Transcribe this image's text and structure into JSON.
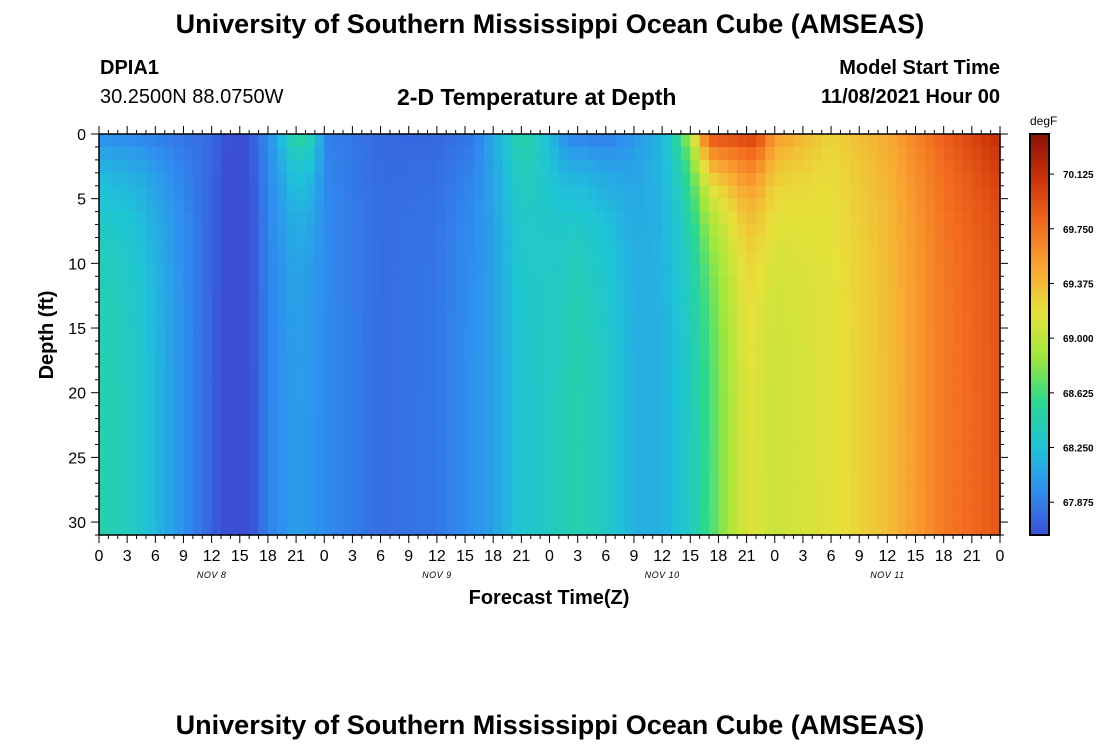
{
  "header": {
    "title": "University of Southern Mississippi Ocean Cube (AMSEAS)",
    "station": "DPIA1",
    "coords": "30.2500N  88.0750W",
    "subtitle": "2-D Temperature at Depth",
    "model_label": "Model Start Time",
    "model_time": "11/08/2021 Hour 00"
  },
  "footer": {
    "title": "University of Southern Mississippi Ocean Cube (AMSEAS)"
  },
  "chart_data": {
    "type": "heatmap",
    "title": "2-D Temperature at Depth",
    "xlabel": "Forecast Time(Z)",
    "ylabel": "Depth (ft)",
    "x_unit": "hours since 11/08/2021 00Z",
    "xlim": [
      0,
      96
    ],
    "ylim": [
      0,
      31
    ],
    "y_ticks": [
      0,
      5,
      10,
      15,
      20,
      25,
      30
    ],
    "x_tick_labels": [
      "0",
      "3",
      "6",
      "9",
      "12",
      "15",
      "18",
      "21",
      "0",
      "3",
      "6",
      "9",
      "12",
      "15",
      "18",
      "21",
      "0",
      "3",
      "6",
      "9",
      "12",
      "15",
      "18",
      "21",
      "0",
      "3",
      "6",
      "9",
      "12",
      "15",
      "18",
      "21",
      "0"
    ],
    "day_labels": [
      {
        "label": "NOV 8",
        "hour": 12
      },
      {
        "label": "NOV 9",
        "hour": 36
      },
      {
        "label": "NOV 10",
        "hour": 60
      },
      {
        "label": "NOV 11",
        "hour": 84
      }
    ],
    "colorbar": {
      "unit": "degF",
      "min": 67.65,
      "max": 70.4,
      "ticks": [
        "70.125",
        "69.750",
        "69.375",
        "69.000",
        "68.625",
        "68.250",
        "67.875"
      ],
      "colors": [
        "#3b4fd6",
        "#2f8ef0",
        "#1fc4d8",
        "#2bd88f",
        "#9ee83c",
        "#e7e13a",
        "#f9a431",
        "#f26a1e",
        "#cc3208",
        "#8d1007"
      ]
    },
    "surface_profile_degF": [
      [
        0,
        67.95
      ],
      [
        6,
        67.88
      ],
      [
        12,
        67.78
      ],
      [
        15,
        67.55
      ],
      [
        18,
        67.95
      ],
      [
        21,
        68.55
      ],
      [
        23,
        68.4
      ],
      [
        24,
        67.9
      ],
      [
        30,
        67.78
      ],
      [
        36,
        67.76
      ],
      [
        40,
        67.85
      ],
      [
        43,
        68.25
      ],
      [
        45,
        68.5
      ],
      [
        47,
        68.35
      ],
      [
        50,
        67.9
      ],
      [
        54,
        67.85
      ],
      [
        57,
        68.0
      ],
      [
        60,
        68.2
      ],
      [
        62,
        68.6
      ],
      [
        63.5,
        69.2
      ],
      [
        65,
        69.95
      ],
      [
        70,
        70.05
      ],
      [
        72,
        69.55
      ],
      [
        78,
        69.25
      ],
      [
        84,
        69.45
      ],
      [
        90,
        69.85
      ],
      [
        96,
        70.15
      ]
    ],
    "deep_profile_degF": [
      [
        0,
        68.45
      ],
      [
        4,
        68.35
      ],
      [
        8,
        68.05
      ],
      [
        12,
        67.75
      ],
      [
        15,
        67.5
      ],
      [
        18,
        67.9
      ],
      [
        21,
        68.05
      ],
      [
        24,
        67.95
      ],
      [
        30,
        67.8
      ],
      [
        36,
        67.85
      ],
      [
        42,
        68.05
      ],
      [
        45,
        68.3
      ],
      [
        48,
        68.35
      ],
      [
        51,
        68.45
      ],
      [
        54,
        68.35
      ],
      [
        57,
        68.15
      ],
      [
        60,
        68.15
      ],
      [
        63,
        68.35
      ],
      [
        66,
        68.75
      ],
      [
        69,
        69.15
      ],
      [
        72,
        69.05
      ],
      [
        78,
        69.15
      ],
      [
        84,
        69.35
      ],
      [
        90,
        69.7
      ],
      [
        96,
        69.9
      ]
    ]
  }
}
